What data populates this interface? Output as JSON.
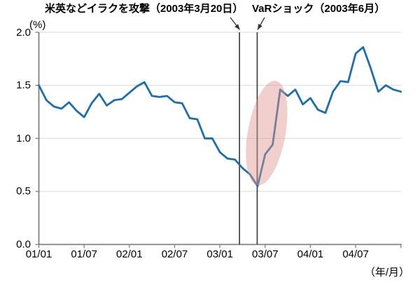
{
  "chart_data": {
    "type": "line",
    "title": "",
    "y_axis_unit_label": "(%)",
    "x_axis_unit_label": "（年/月）",
    "ylim": [
      0.0,
      2.0
    ],
    "y_tick_step": 0.5,
    "y_tick_labels": [
      "0.0",
      "0.5",
      "1.0",
      "1.5",
      "2.0"
    ],
    "x_tick_labels": [
      "01/01",
      "01/07",
      "02/01",
      "02/07",
      "03/01",
      "03/07",
      "04/01",
      "04/07"
    ],
    "grid": "horizontal",
    "legend": "none",
    "x": [
      "01/01",
      "01/02",
      "01/03",
      "01/04",
      "01/05",
      "01/06",
      "01/07",
      "01/08",
      "01/09",
      "01/10",
      "01/11",
      "01/12",
      "02/01",
      "02/02",
      "02/03",
      "02/04",
      "02/05",
      "02/06",
      "02/07",
      "02/08",
      "02/09",
      "02/10",
      "02/11",
      "02/12",
      "03/01",
      "03/02",
      "03/03",
      "03/04",
      "03/05",
      "03/06",
      "03/07",
      "03/08",
      "03/09",
      "03/10",
      "03/11",
      "03/12",
      "04/01",
      "04/02",
      "04/03",
      "04/04",
      "04/05",
      "04/06",
      "04/07",
      "04/08",
      "04/09",
      "04/10",
      "04/11",
      "04/12",
      "05/01"
    ],
    "values": [
      1.5,
      1.36,
      1.3,
      1.28,
      1.34,
      1.26,
      1.2,
      1.33,
      1.42,
      1.31,
      1.36,
      1.37,
      1.43,
      1.49,
      1.53,
      1.4,
      1.39,
      1.4,
      1.34,
      1.33,
      1.19,
      1.18,
      1.0,
      1.0,
      0.87,
      0.81,
      0.8,
      0.72,
      0.66,
      0.55,
      0.85,
      0.94,
      1.46,
      1.4,
      1.46,
      1.32,
      1.38,
      1.27,
      1.24,
      1.44,
      1.54,
      1.53,
      1.8,
      1.86,
      1.66,
      1.44,
      1.5,
      1.46,
      1.44
    ]
  },
  "annotations": {
    "iraq_attack": {
      "label": "米英などイラクを攻撃（2003年3月20日）",
      "x_month_index": 26.6
    },
    "var_shock": {
      "label": "VaRショック（2003年6月）",
      "x_month_index": 28.95
    },
    "highlight_ellipse": {
      "center_month_index": 30.2,
      "center_value": 1.05,
      "radius_months": 2.5,
      "radius_value": 0.5,
      "rotation_deg": 10,
      "fill": "rgba(224,148,144,0.45)"
    }
  },
  "colors": {
    "series_line": "#1F6EA8",
    "gridline": "#D9D9D9",
    "axis": "#808080",
    "event_line": "#3F3F3F",
    "arrow": "#333333",
    "text": "#000000"
  }
}
